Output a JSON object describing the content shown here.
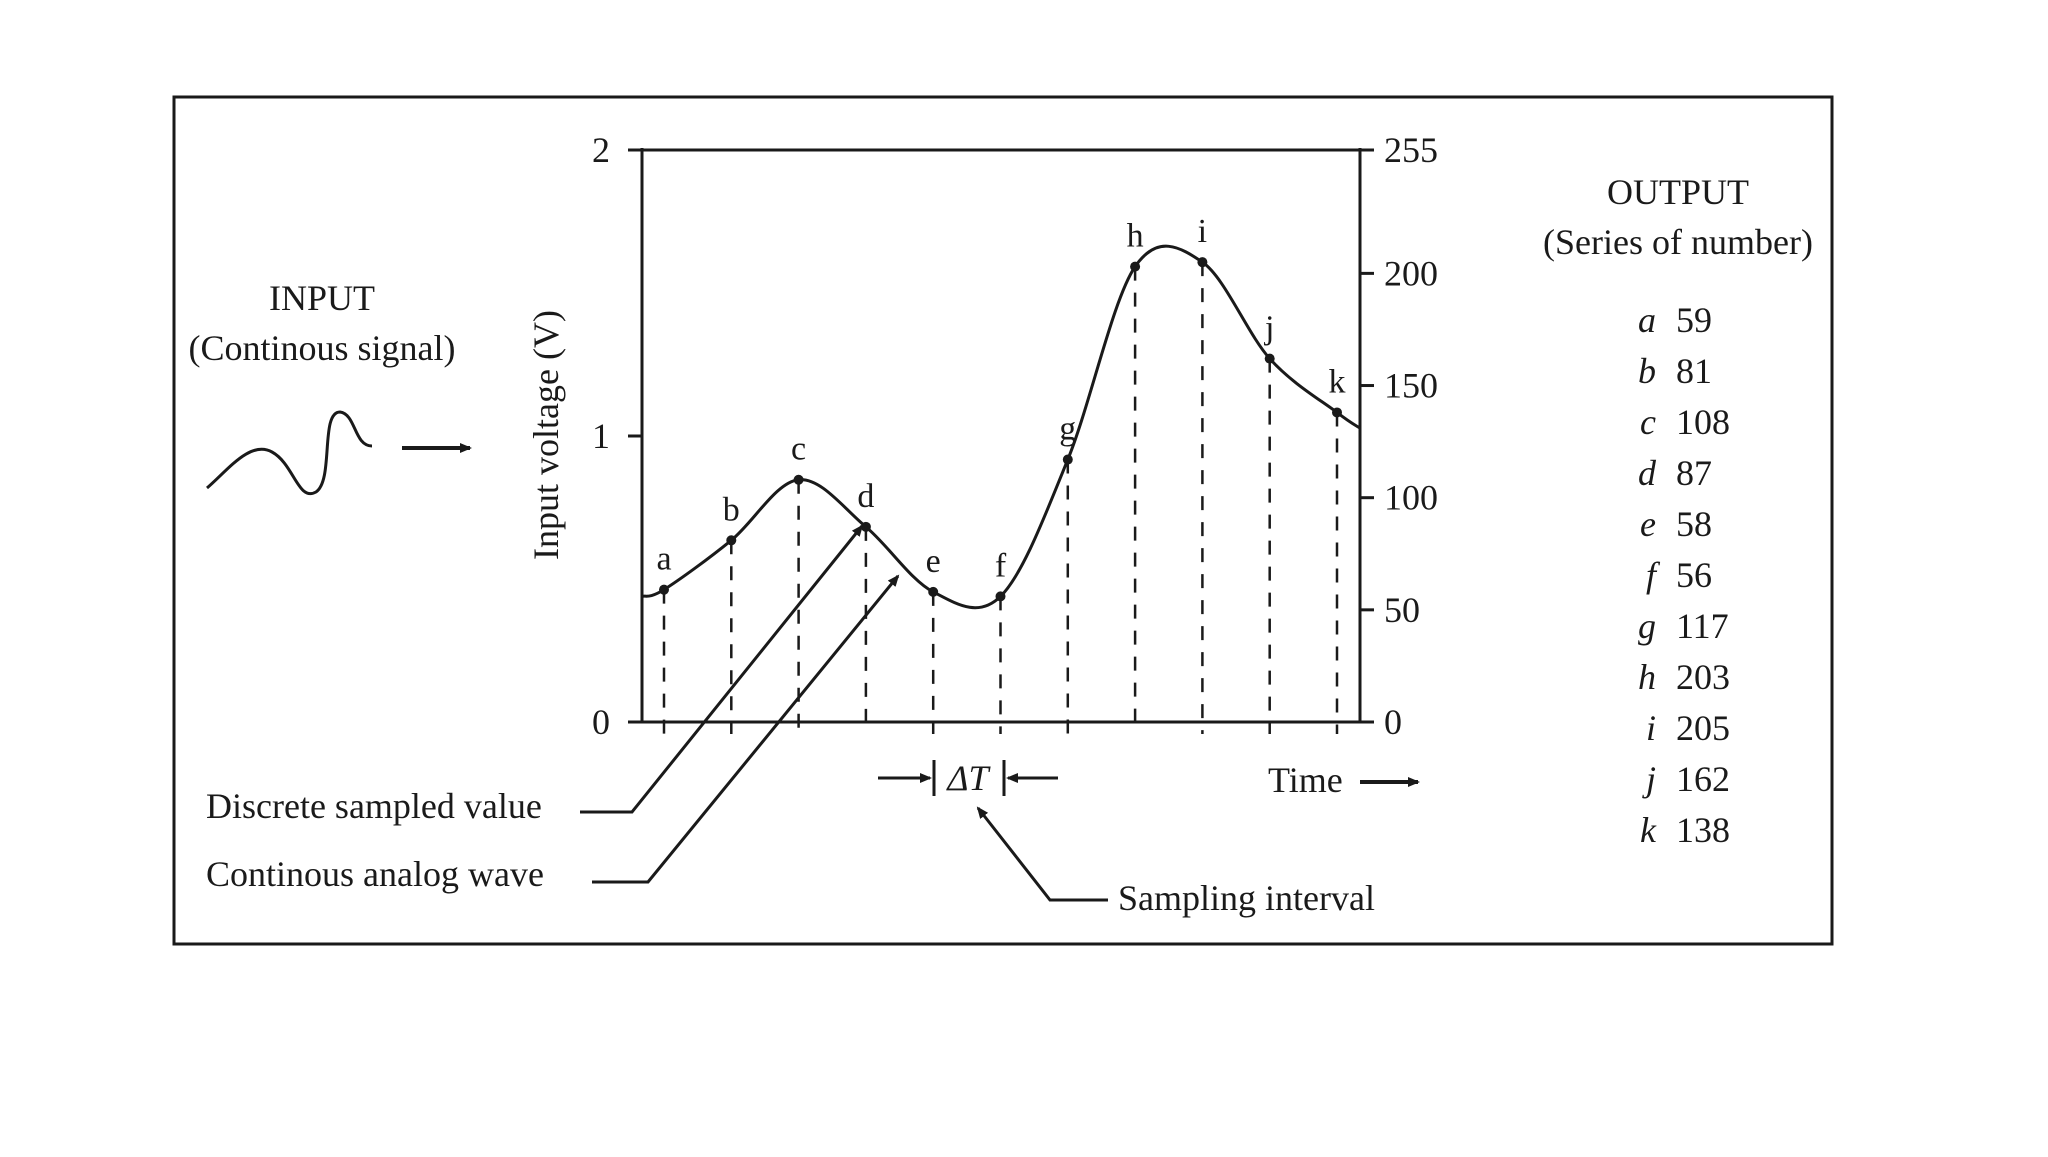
{
  "input": {
    "title": "INPUT",
    "subtitle": "(Continous signal)"
  },
  "output": {
    "title": "OUTPUT",
    "subtitle": "(Series of number)",
    "rows": [
      {
        "letter": "a",
        "value": "59"
      },
      {
        "letter": "b",
        "value": "81"
      },
      {
        "letter": "c",
        "value": "108"
      },
      {
        "letter": "d",
        "value": "87"
      },
      {
        "letter": "e",
        "value": "58"
      },
      {
        "letter": "f",
        "value": "56"
      },
      {
        "letter": "g",
        "value": "117"
      },
      {
        "letter": "h",
        "value": "203"
      },
      {
        "letter": "i",
        "value": "205"
      },
      {
        "letter": "j",
        "value": "162"
      },
      {
        "letter": "k",
        "value": "138"
      }
    ]
  },
  "chart": {
    "ylabel": "Input voltage (V)",
    "left_ticks": [
      "0",
      "1",
      "2"
    ],
    "right_ticks": [
      "0",
      "50",
      "100",
      "150",
      "200",
      "255"
    ],
    "xlabel": "Time",
    "delta_label": "ΔT",
    "sample_labels": [
      "a",
      "b",
      "c",
      "d",
      "e",
      "f",
      "g",
      "h",
      "i",
      "j",
      "k"
    ],
    "sample_values": [
      59,
      81,
      108,
      87,
      58,
      56,
      117,
      203,
      205,
      162,
      138
    ],
    "right_axis_max": 255,
    "left_axis_max": 2
  },
  "annotations": {
    "discrete": "Discrete sampled value",
    "continuous": "Continous analog wave",
    "interval": "Sampling interval"
  }
}
